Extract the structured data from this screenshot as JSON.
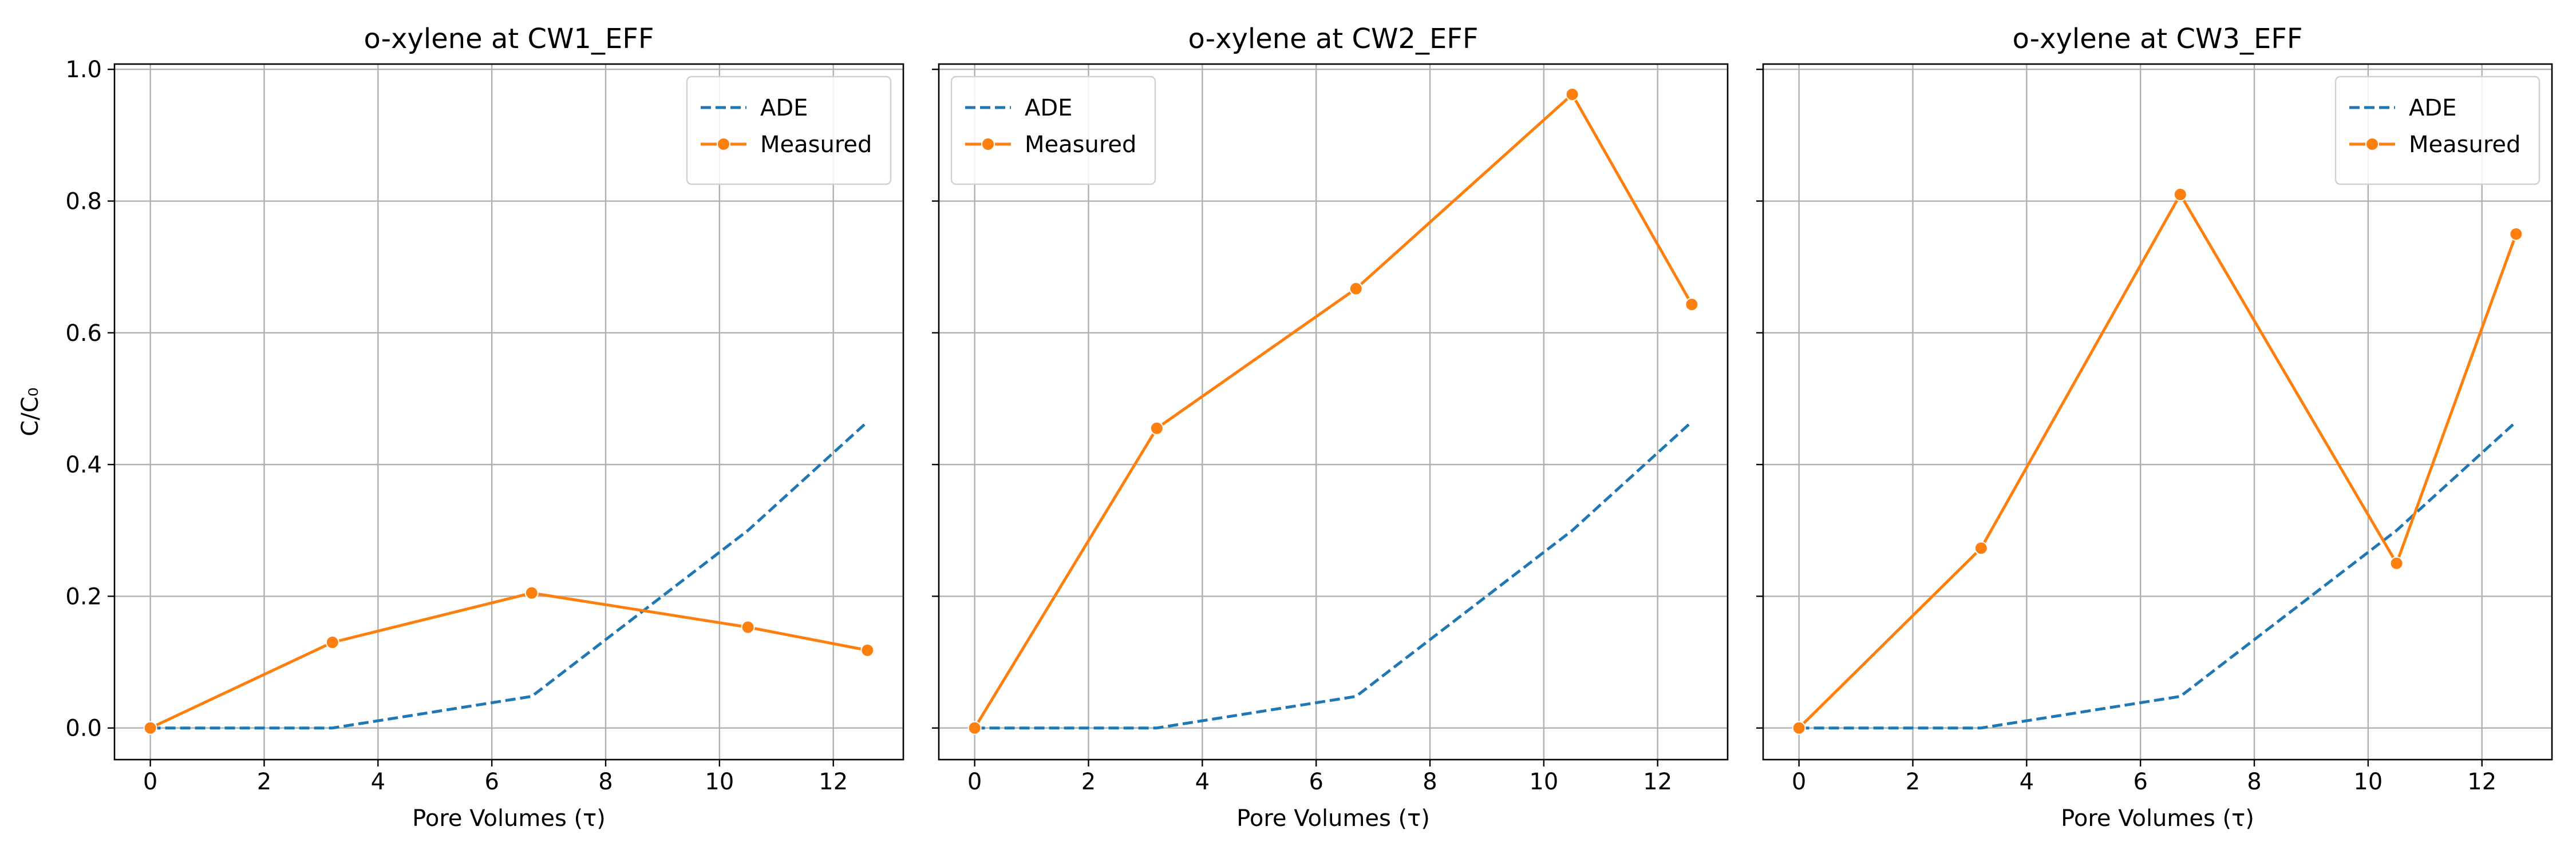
{
  "figure": {
    "ylabel": "C/C₀"
  },
  "colors": {
    "ade": "#1f77b4",
    "measured": "#ff7f0e",
    "grid": "#b0b0b0",
    "axis": "#000000"
  },
  "chart_data": [
    {
      "type": "line",
      "title": "o-xylene at CW1_EFF",
      "xlabel": "Pore Volumes (τ)",
      "ylabel": "C/C₀",
      "xlim": [
        -0.63,
        13.23
      ],
      "ylim": [
        -0.048,
        1.008
      ],
      "xticks": [
        0,
        2,
        4,
        6,
        8,
        10,
        12
      ],
      "yticks": [
        0.0,
        0.2,
        0.4,
        0.6,
        0.8,
        1.0
      ],
      "grid": true,
      "legend": {
        "position": "top-right",
        "entries": [
          "ADE",
          "Measured"
        ]
      },
      "series": [
        {
          "name": "ADE",
          "style": "dashed",
          "x": [
            0,
            3.2,
            6.7,
            10.5,
            12.6
          ],
          "y": [
            0.0,
            0.0,
            0.048,
            0.3,
            0.465
          ]
        },
        {
          "name": "Measured",
          "style": "solid-markers",
          "x": [
            0,
            3.2,
            6.7,
            10.5,
            12.6
          ],
          "y": [
            0.0,
            0.13,
            0.205,
            0.153,
            0.118
          ]
        }
      ]
    },
    {
      "type": "line",
      "title": "o-xylene at CW2_EFF",
      "xlabel": "Pore Volumes (τ)",
      "ylabel": "",
      "xlim": [
        -0.63,
        13.23
      ],
      "ylim": [
        -0.048,
        1.008
      ],
      "xticks": [
        0,
        2,
        4,
        6,
        8,
        10,
        12
      ],
      "yticks": [
        0.0,
        0.2,
        0.4,
        0.6,
        0.8,
        1.0
      ],
      "grid": true,
      "legend": {
        "position": "top-left",
        "entries": [
          "ADE",
          "Measured"
        ]
      },
      "series": [
        {
          "name": "ADE",
          "style": "dashed",
          "x": [
            0,
            3.2,
            6.7,
            10.5,
            12.6
          ],
          "y": [
            0.0,
            0.0,
            0.048,
            0.3,
            0.465
          ]
        },
        {
          "name": "Measured",
          "style": "solid-markers",
          "x": [
            0,
            3.2,
            6.7,
            10.5,
            12.6
          ],
          "y": [
            0.0,
            0.455,
            0.667,
            0.962,
            0.643
          ]
        }
      ]
    },
    {
      "type": "line",
      "title": "o-xylene at CW3_EFF",
      "xlabel": "Pore Volumes (τ)",
      "ylabel": "",
      "xlim": [
        -0.63,
        13.23
      ],
      "ylim": [
        -0.048,
        1.008
      ],
      "xticks": [
        0,
        2,
        4,
        6,
        8,
        10,
        12
      ],
      "yticks": [
        0.0,
        0.2,
        0.4,
        0.6,
        0.8,
        1.0
      ],
      "grid": true,
      "legend": {
        "position": "top-right",
        "entries": [
          "ADE",
          "Measured"
        ]
      },
      "series": [
        {
          "name": "ADE",
          "style": "dashed",
          "x": [
            0,
            3.2,
            6.7,
            10.5,
            12.6
          ],
          "y": [
            0.0,
            0.0,
            0.048,
            0.3,
            0.465
          ]
        },
        {
          "name": "Measured",
          "style": "solid-markers",
          "x": [
            0,
            3.2,
            6.7,
            10.5,
            12.6
          ],
          "y": [
            0.0,
            0.273,
            0.81,
            0.25,
            0.75
          ]
        }
      ]
    }
  ]
}
